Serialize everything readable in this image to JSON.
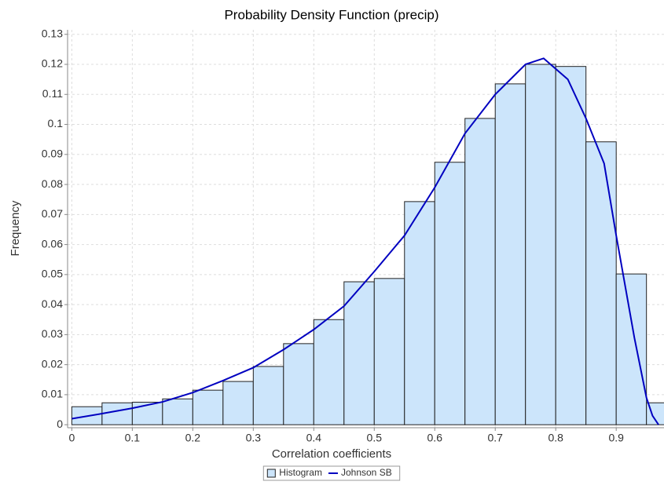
{
  "chart_data": {
    "type": "histogram",
    "title": "Probability Density Function (precip)",
    "x_label": "Correlation coefficients",
    "y_label": "Frequency",
    "bins": [
      0,
      0.05,
      0.1,
      0.15,
      0.2,
      0.25,
      0.3,
      0.35,
      0.4,
      0.45,
      0.5,
      0.55,
      0.6,
      0.65,
      0.7,
      0.75,
      0.8,
      0.85,
      0.9,
      0.95,
      1.0
    ],
    "series": [
      {
        "name": "Histogram",
        "color": "#cce5fb",
        "values": [
          0.006,
          0.0073,
          0.0075,
          0.0086,
          0.0115,
          0.0144,
          0.0194,
          0.027,
          0.035,
          0.0476,
          0.0487,
          0.0743,
          0.0874,
          0.102,
          0.1135,
          0.12,
          0.1193,
          0.0942,
          0.0502,
          0.0073
        ]
      },
      {
        "name": "Johnson SB",
        "type": "line",
        "color": "#0000c0",
        "x": [
          0,
          0.05,
          0.1,
          0.15,
          0.2,
          0.25,
          0.3,
          0.35,
          0.4,
          0.45,
          0.5,
          0.55,
          0.6,
          0.65,
          0.7,
          0.75,
          0.78,
          0.82,
          0.85,
          0.88,
          0.9,
          0.93,
          0.95,
          0.96,
          0.97
        ],
        "values": [
          0.002,
          0.0037,
          0.0055,
          0.0076,
          0.0107,
          0.0147,
          0.019,
          0.025,
          0.0317,
          0.0395,
          0.051,
          0.063,
          0.079,
          0.097,
          0.11,
          0.12,
          0.122,
          0.115,
          0.102,
          0.087,
          0.063,
          0.029,
          0.009,
          0.003,
          0
        ]
      }
    ],
    "xlim": [
      -0.007,
      0.979
    ],
    "ylim": [
      -0.001,
      0.1315
    ],
    "xticks": [
      0,
      0.1,
      0.2,
      0.3,
      0.4,
      0.5,
      0.6,
      0.7,
      0.8,
      0.9
    ],
    "yticks": [
      0,
      0.01,
      0.02,
      0.03,
      0.04,
      0.05,
      0.06,
      0.07,
      0.08,
      0.09,
      0.1,
      0.11,
      0.12,
      0.13
    ],
    "grid": true,
    "legend": "bottom"
  }
}
